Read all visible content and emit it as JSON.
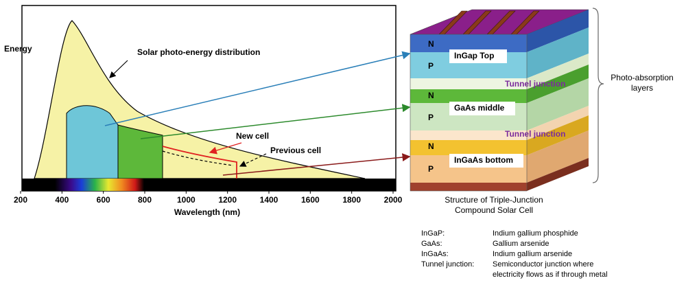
{
  "spectrum": {
    "y_label": "Energy",
    "x_label": "Wavelength (nm)",
    "x_ticks": [
      200,
      400,
      600,
      800,
      1000,
      1200,
      1400,
      1600,
      1800,
      2000
    ],
    "annotations": {
      "distribution": "Solar photo-energy distribution",
      "new_cell": "New cell",
      "previous_cell": "Previous cell"
    }
  },
  "cell": {
    "layers": [
      {
        "n": "N",
        "p": "P",
        "name": "InGap Top"
      },
      {
        "n": "N",
        "p": "P",
        "name": "GaAs middle"
      },
      {
        "n": "N",
        "p": "P",
        "name": "InGaAs bottom"
      }
    ],
    "tunnel_junctions": [
      "Tunnel junction",
      "Tunnel junction"
    ],
    "side_label": [
      "Photo-absorption",
      "layers"
    ],
    "caption": [
      "Structure of Triple-Junction",
      "Compound Solar Cell"
    ]
  },
  "glossary": [
    {
      "term": "InGaP:",
      "definition": [
        "Indium gallium phosphide"
      ]
    },
    {
      "term": "GaAs:",
      "definition": [
        "Gallium arsenide"
      ]
    },
    {
      "term": "InGaAs:",
      "definition": [
        "Indium gallium arsenide"
      ]
    },
    {
      "term": "Tunnel junction:",
      "definition": [
        "Semiconductor junction where",
        "electricity flows as if through metal"
      ]
    }
  ]
}
